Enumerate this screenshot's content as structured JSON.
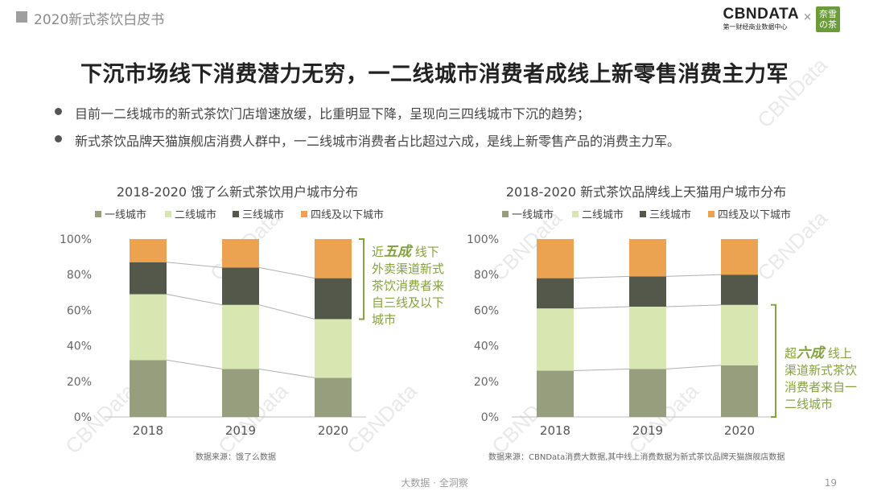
{
  "header": {
    "report_title": "2020新式茶饮白皮书",
    "logo_text": "CBNDATA",
    "logo_tagline": "第一财经商业数据中心",
    "logo_separator": "×",
    "partner_logo": "奈雪の茶"
  },
  "slide_title": "下沉市场线下消费潜力无穷，一二线城市消费者成线上新零售消费主力军",
  "bullets": [
    "目前一二线城市的新式茶饮门店增速放缓，比重明显下降，呈现向三四线城市下沉的趋势；",
    "新式茶饮品牌天猫旗舰店消费人群中，一二线城市消费者占比超过六成，是线上新零售产品的消费主力军。"
  ],
  "watermark": "CBNData",
  "colors": {
    "tier1": "#979e7d",
    "tier2": "#d8e6b2",
    "tier3": "#53584a",
    "tier4": "#eca351",
    "accent_green": "#84a23f",
    "connector": "#b0b0b0"
  },
  "chart_data": [
    {
      "type": "bar",
      "stacked": true,
      "title": "2018-2020 饿了么新式茶饮用户城市分布",
      "categories": [
        "2018",
        "2019",
        "2020"
      ],
      "ylim": [
        0,
        100
      ],
      "yticks": [
        "0%",
        "20%",
        "40%",
        "60%",
        "80%",
        "100%"
      ],
      "legend_position": "top",
      "series": [
        {
          "name": "一线城市",
          "values": [
            32,
            27,
            22
          ]
        },
        {
          "name": "二线城市",
          "values": [
            37,
            36,
            33
          ]
        },
        {
          "name": "三线城市",
          "values": [
            18,
            21,
            23
          ]
        },
        {
          "name": "四线及以下城市",
          "values": [
            13,
            16,
            22
          ]
        }
      ],
      "annotation": {
        "prefix": "近",
        "highlight": "五成",
        "text_lines": [
          "线下",
          "外卖渠道新式",
          "茶饮消费者来",
          "自三线及以下",
          "城市"
        ]
      },
      "source": "数据来源：饿了么数据"
    },
    {
      "type": "bar",
      "stacked": true,
      "title": "2018-2020 新式茶饮品牌线上天猫用户城市分布",
      "categories": [
        "2018",
        "2019",
        "2020"
      ],
      "ylim": [
        0,
        100
      ],
      "yticks": [
        "0%",
        "20%",
        "40%",
        "60%",
        "80%",
        "100%"
      ],
      "legend_position": "top",
      "series": [
        {
          "name": "一线城市",
          "values": [
            26,
            27,
            29
          ]
        },
        {
          "name": "二线城市",
          "values": [
            35,
            35,
            34
          ]
        },
        {
          "name": "三线城市",
          "values": [
            17,
            17,
            17
          ]
        },
        {
          "name": "四线及以下城市",
          "values": [
            22,
            21,
            20
          ]
        }
      ],
      "annotation": {
        "prefix": "超",
        "highlight": "六成",
        "text_lines": [
          "线上",
          "渠道新式茶饮",
          "消费者来自一",
          "二线城市"
        ]
      },
      "source": "数据来源：CBNData消费大数据,其中线上消费数据为新式茶饮品牌天猫旗舰店数据"
    }
  ],
  "footer": {
    "tagline": "大数据 · 全洞察",
    "page": "19"
  }
}
